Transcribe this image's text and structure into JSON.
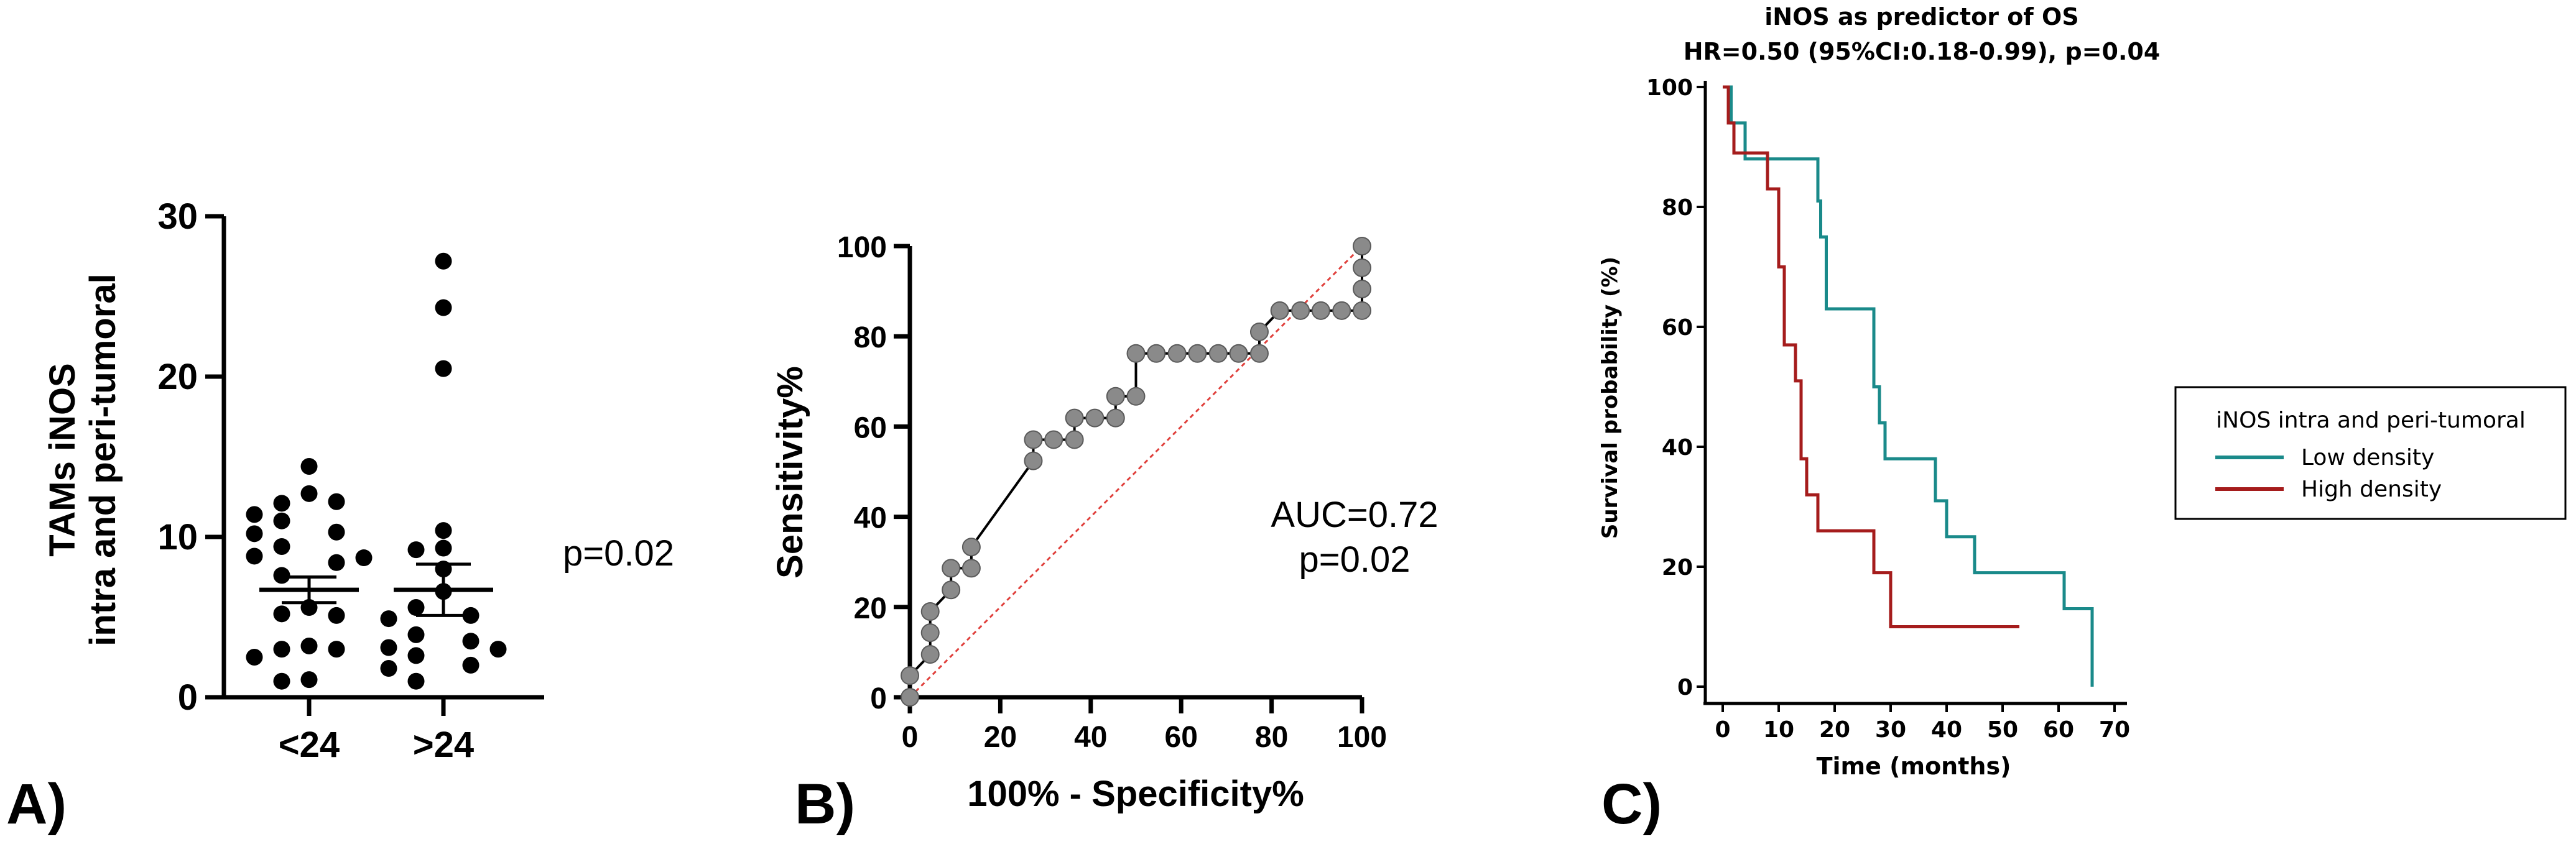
{
  "chart_data": [
    {
      "panel": "A)",
      "type": "scatter",
      "title": "",
      "xlabel": "",
      "ylabel": [
        "TAMs iNOS",
        "intra and peri-tumoral"
      ],
      "ylim": [
        0,
        30
      ],
      "yticks": [
        "0",
        "10",
        "20",
        "30"
      ],
      "categories": [
        "<24",
        ">24"
      ],
      "series": [
        {
          "name": "<24",
          "mean": 6.7,
          "sem_low": 5.9,
          "sem_high": 7.5,
          "points": [
            14.4,
            12.7,
            12.1,
            12.2,
            11.4,
            11.0,
            10.3,
            10.2,
            9.4,
            8.4,
            8.8,
            8.7,
            7.6,
            5.6,
            5.2,
            5.1,
            3.2,
            3.0,
            3.0,
            2.5,
            1.1,
            1.0
          ]
        },
        {
          "name": ">24",
          "mean": 6.7,
          "sem_low": 5.1,
          "sem_high": 8.3,
          "points": [
            27.2,
            24.3,
            20.5,
            10.4,
            9.3,
            9.2,
            8.0,
            6.6,
            5.6,
            5.1,
            4.9,
            3.9,
            3.5,
            3.1,
            3.0,
            2.6,
            2.0,
            1.8,
            1.0
          ]
        }
      ],
      "annotation": "p=0.02"
    },
    {
      "panel": "B)",
      "type": "line",
      "title": "",
      "xlabel": "100% - Specificity%",
      "ylabel": "Sensitivity%",
      "xlim": [
        0,
        100
      ],
      "ylim": [
        0,
        100
      ],
      "xticks": [
        "0",
        "20",
        "40",
        "60",
        "80",
        "100"
      ],
      "yticks": [
        "0",
        "20",
        "40",
        "60",
        "80",
        "100"
      ],
      "series": [
        {
          "name": "ROC",
          "x": [
            0,
            0,
            4.5,
            4.5,
            4.5,
            9.1,
            9.1,
            13.6,
            13.6,
            27.3,
            27.3,
            31.8,
            36.4,
            36.4,
            40.9,
            45.5,
            45.5,
            50,
            50,
            54.5,
            59.1,
            63.6,
            68.2,
            72.7,
            77.3,
            77.3,
            81.8,
            86.4,
            90.9,
            95.5,
            100,
            100,
            100,
            100
          ],
          "y": [
            0,
            4.8,
            9.5,
            14.3,
            19,
            23.8,
            28.6,
            28.6,
            33.3,
            52.4,
            57.1,
            57.1,
            57.1,
            61.9,
            61.9,
            61.9,
            66.7,
            66.7,
            76.2,
            76.2,
            76.2,
            76.2,
            76.2,
            76.2,
            76.2,
            81,
            85.7,
            85.7,
            85.7,
            85.7,
            85.7,
            90.5,
            95.2,
            100
          ]
        },
        {
          "name": "reference",
          "x": [
            0,
            100
          ],
          "y": [
            0,
            100
          ]
        }
      ],
      "annotation": [
        "AUC=0.72",
        "p=0.02"
      ]
    },
    {
      "panel": "C)",
      "type": "line",
      "title": [
        "iNOS as predictor of OS",
        "HR=0.50 (95%CI:0.18-0.99), p=0.04"
      ],
      "xlabel": "Time (months)",
      "ylabel": "Survival probability (%)",
      "xlim": [
        0,
        70
      ],
      "ylim": [
        0,
        100
      ],
      "xticks": [
        "0",
        "10",
        "20",
        "30",
        "40",
        "50",
        "60",
        "70"
      ],
      "yticks": [
        "0",
        "20",
        "40",
        "60",
        "80",
        "100"
      ],
      "legend_title": "iNOS intra and peri-tumoral",
      "legend_position": "right",
      "series": [
        {
          "name": "Low density",
          "color": "#1a8a8a",
          "x": [
            0,
            1.5,
            1.5,
            4,
            4,
            13,
            13,
            17,
            17,
            17.5,
            17.5,
            18.5,
            18.5,
            27,
            27,
            28,
            28,
            29,
            29,
            38,
            38,
            40,
            40,
            45,
            45,
            61,
            61,
            66,
            66
          ],
          "y": [
            100,
            100,
            94,
            94,
            88,
            88,
            88,
            88,
            81,
            81,
            75,
            75,
            63,
            63,
            50,
            50,
            44,
            44,
            38,
            38,
            31,
            31,
            25,
            25,
            19,
            19,
            13,
            13,
            0
          ]
        },
        {
          "name": "High density",
          "color": "#a51c1c",
          "x": [
            0,
            1,
            1,
            2,
            2,
            8,
            8,
            10,
            10,
            11,
            11,
            13,
            13,
            14,
            14,
            15,
            15,
            17,
            17,
            27,
            27,
            30,
            30,
            53
          ],
          "y": [
            100,
            100,
            94,
            94,
            89,
            89,
            83,
            83,
            70,
            70,
            57,
            57,
            51,
            51,
            38,
            38,
            32,
            32,
            26,
            26,
            19,
            19,
            10,
            10
          ]
        }
      ]
    }
  ]
}
